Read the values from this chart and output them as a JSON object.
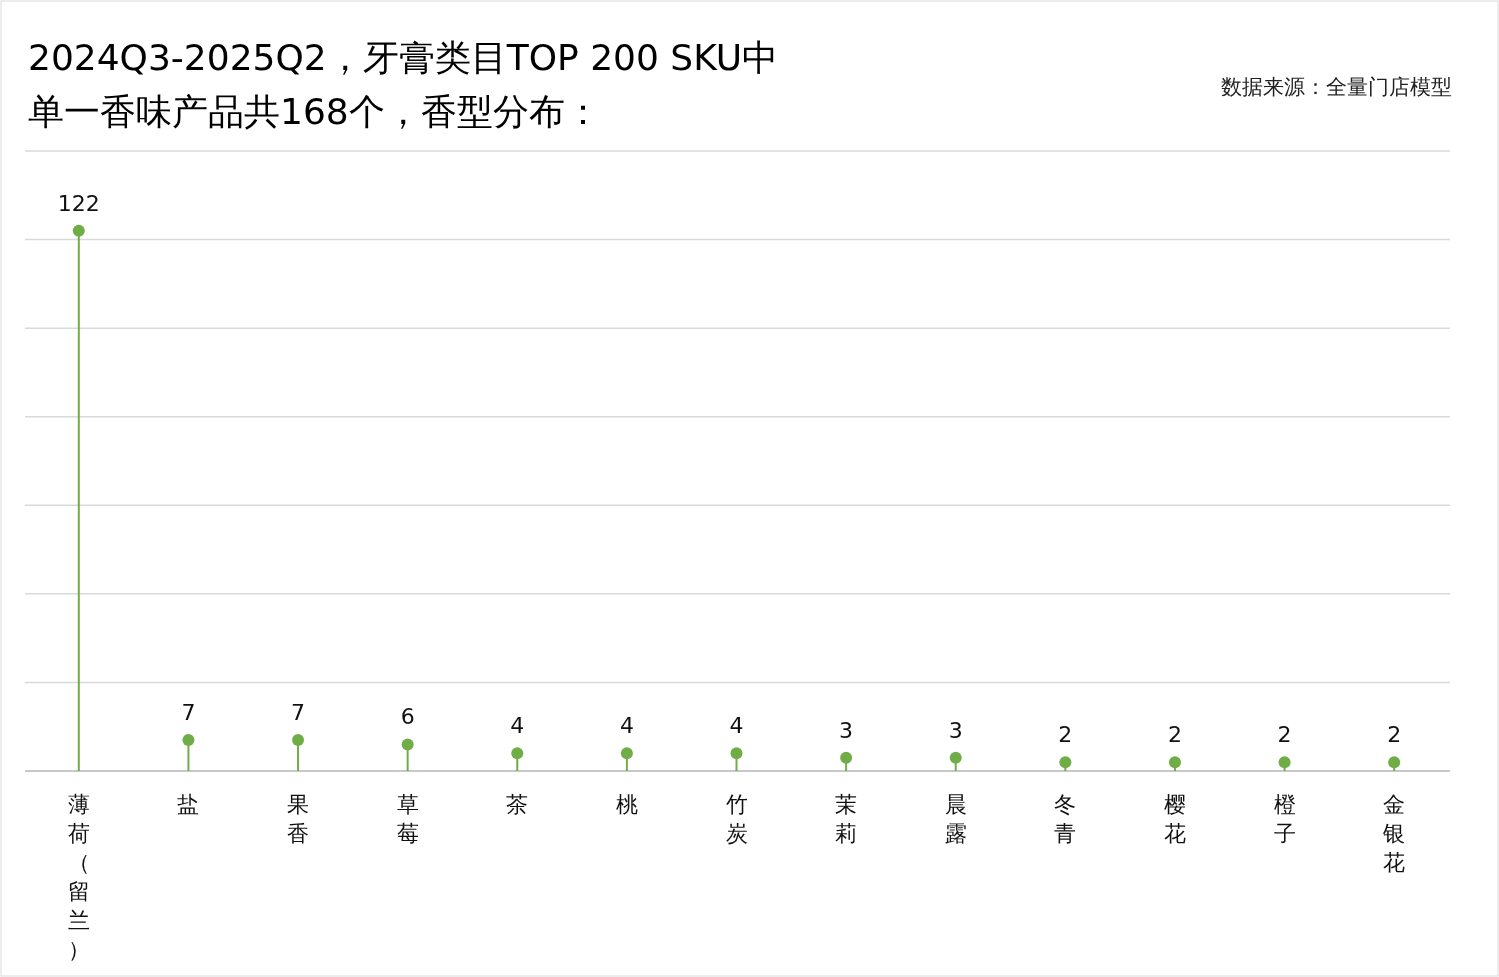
{
  "chart_data": {
    "type": "lollipop",
    "title": "2024Q3-2025Q2，牙膏类目TOP 200 SKU中",
    "subtitle": "单一香味产品共168个，香型分布：",
    "annotations": [
      "数据来源：全量门店模型"
    ],
    "categories": [
      "薄荷（留兰）",
      "盐",
      "果香",
      "草莓",
      "茶",
      "桃",
      "竹炭",
      "茉莉",
      "晨露",
      "冬青",
      "樱花",
      "橙子",
      "金银花"
    ],
    "values": [
      122,
      7,
      7,
      6,
      4,
      4,
      4,
      3,
      3,
      2,
      2,
      2,
      2
    ],
    "color": "#70ad47",
    "ylim": [
      0,
      140
    ],
    "yticks": [
      0,
      20,
      40,
      60,
      80,
      100,
      120,
      140
    ],
    "tick_labels": "x",
    "grid": "y",
    "data_labels": true,
    "marker": "circle"
  }
}
